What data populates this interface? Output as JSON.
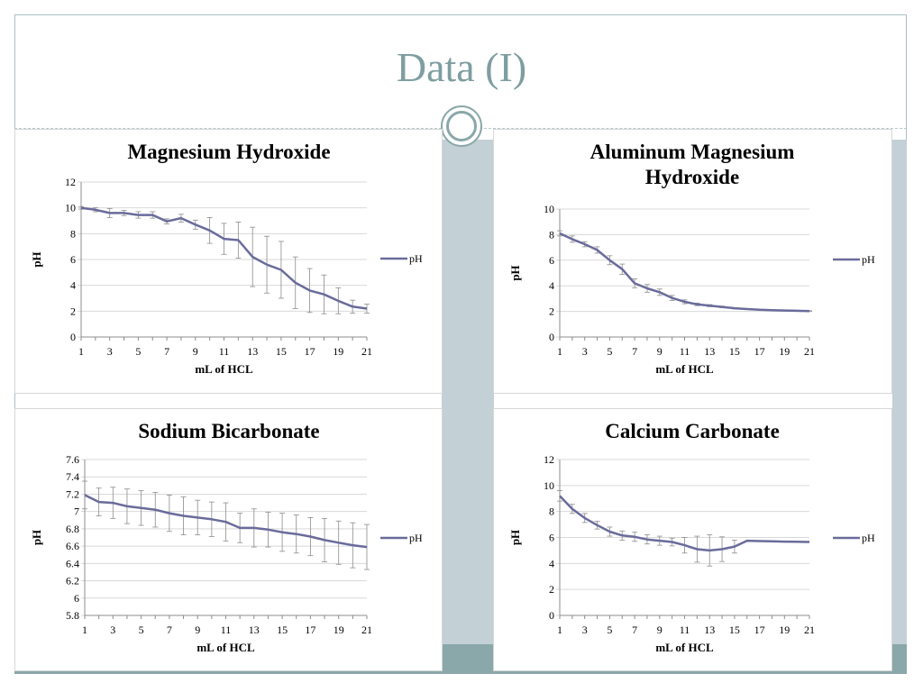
{
  "slide": {
    "title": "Data (I)"
  },
  "colors": {
    "line": "#6a6b9b",
    "accent": "#8aa7a9",
    "strip": "#c3d0d6",
    "grid": "#d9d9d9",
    "error": "#8c8c8c"
  },
  "chart_data": [
    {
      "type": "line",
      "title": [
        "Magnesium Hydroxide"
      ],
      "xlabel": "mL of HCL",
      "ylabel": "pH",
      "legend": "right",
      "grid": true,
      "ylim": [
        0,
        12
      ],
      "yticks": [
        "0",
        "2",
        "4",
        "6",
        "8",
        "10",
        "12"
      ],
      "xticks": [
        "1",
        "3",
        "5",
        "7",
        "9",
        "11",
        "13",
        "15",
        "17",
        "19",
        "21"
      ],
      "series": [
        {
          "name": "pH",
          "x": [
            1,
            2,
            3,
            4,
            5,
            6,
            7,
            8,
            9,
            10,
            11,
            12,
            13,
            14,
            15,
            16,
            17,
            18,
            19,
            20,
            21
          ],
          "y": [
            10.0,
            9.85,
            9.6,
            9.6,
            9.45,
            9.45,
            8.95,
            9.2,
            8.7,
            8.25,
            7.6,
            7.5,
            6.2,
            5.6,
            5.2,
            4.2,
            3.6,
            3.3,
            2.8,
            2.35,
            2.2
          ],
          "err": [
            0.1,
            0.15,
            0.35,
            0.2,
            0.25,
            0.25,
            0.2,
            0.3,
            0.35,
            1.0,
            1.2,
            1.4,
            2.3,
            2.2,
            2.2,
            2.0,
            1.7,
            1.5,
            1.0,
            0.5,
            0.35
          ]
        }
      ]
    },
    {
      "type": "line",
      "title": [
        "Aluminum Magnesium",
        "Hydroxide"
      ],
      "xlabel": "mL of HCL",
      "ylabel": "pH",
      "legend": "right",
      "grid": true,
      "ylim": [
        0,
        10
      ],
      "yticks": [
        "0",
        "2",
        "4",
        "6",
        "8",
        "10"
      ],
      "xticks": [
        "1",
        "3",
        "5",
        "7",
        "9",
        "11",
        "13",
        "15",
        "17",
        "19",
        "21"
      ],
      "series": [
        {
          "name": "pH",
          "x": [
            1,
            2,
            3,
            4,
            5,
            6,
            7,
            8,
            9,
            10,
            11,
            12,
            13,
            14,
            15,
            16,
            17,
            18,
            19,
            20,
            21
          ],
          "y": [
            8.1,
            7.65,
            7.25,
            6.8,
            6.0,
            5.3,
            4.2,
            3.8,
            3.5,
            3.05,
            2.75,
            2.55,
            2.45,
            2.35,
            2.25,
            2.18,
            2.13,
            2.1,
            2.07,
            2.05,
            2.02
          ],
          "err": [
            0.2,
            0.25,
            0.2,
            0.25,
            0.35,
            0.4,
            0.35,
            0.3,
            0.25,
            0.2,
            0.15,
            0.1,
            0.08,
            0.06,
            0.05,
            0.04,
            0.03,
            0.03,
            0.03,
            0.03,
            0.03
          ]
        }
      ]
    },
    {
      "type": "line",
      "title": [
        "Sodium Bicarbonate"
      ],
      "xlabel": "mL of HCL",
      "ylabel": "pH",
      "legend": "right",
      "grid": true,
      "ylim": [
        5.8,
        7.6
      ],
      "yticks": [
        "5.8",
        "6",
        "6.2",
        "6.4",
        "6.6",
        "6.8",
        "7",
        "7.2",
        "7.4",
        "7.6"
      ],
      "xticks": [
        "1",
        "3",
        "5",
        "7",
        "9",
        "11",
        "13",
        "15",
        "17",
        "19",
        "21"
      ],
      "series": [
        {
          "name": "pH",
          "x": [
            1,
            2,
            3,
            4,
            5,
            6,
            7,
            8,
            9,
            10,
            11,
            12,
            13,
            14,
            15,
            16,
            17,
            18,
            19,
            20,
            21
          ],
          "y": [
            7.19,
            7.11,
            7.1,
            7.06,
            7.04,
            7.02,
            6.98,
            6.95,
            6.93,
            6.91,
            6.88,
            6.81,
            6.81,
            6.79,
            6.76,
            6.74,
            6.71,
            6.67,
            6.64,
            6.61,
            6.59
          ],
          "err": [
            0.16,
            0.16,
            0.18,
            0.2,
            0.2,
            0.2,
            0.21,
            0.22,
            0.2,
            0.2,
            0.22,
            0.17,
            0.22,
            0.2,
            0.22,
            0.22,
            0.22,
            0.25,
            0.25,
            0.26,
            0.26
          ]
        }
      ]
    },
    {
      "type": "line",
      "title": [
        "Calcium Carbonate"
      ],
      "xlabel": "mL of HCL",
      "ylabel": "pH",
      "legend": "right",
      "grid": true,
      "ylim": [
        0,
        12
      ],
      "yticks": [
        "0",
        "2",
        "4",
        "6",
        "8",
        "10",
        "12"
      ],
      "xticks": [
        "1",
        "3",
        "5",
        "7",
        "9",
        "11",
        "13",
        "15",
        "17",
        "19",
        "21"
      ],
      "series": [
        {
          "name": "pH",
          "x": [
            1,
            2,
            3,
            4,
            5,
            6,
            7,
            8,
            9,
            10,
            11,
            12,
            13,
            14,
            15,
            16,
            17,
            18,
            19,
            20,
            21
          ],
          "y": [
            9.2,
            8.2,
            7.5,
            6.95,
            6.45,
            6.15,
            6.05,
            5.85,
            5.75,
            5.65,
            5.4,
            5.1,
            5.0,
            5.1,
            5.3,
            5.75,
            5.72,
            5.7,
            5.68,
            5.67,
            5.65
          ],
          "err": [
            0.4,
            0.35,
            0.35,
            0.3,
            0.35,
            0.35,
            0.35,
            0.35,
            0.35,
            0.3,
            0.6,
            1.0,
            1.2,
            0.95,
            0.5,
            0.0,
            0.0,
            0.0,
            0.0,
            0.0,
            0.0
          ]
        }
      ]
    }
  ]
}
